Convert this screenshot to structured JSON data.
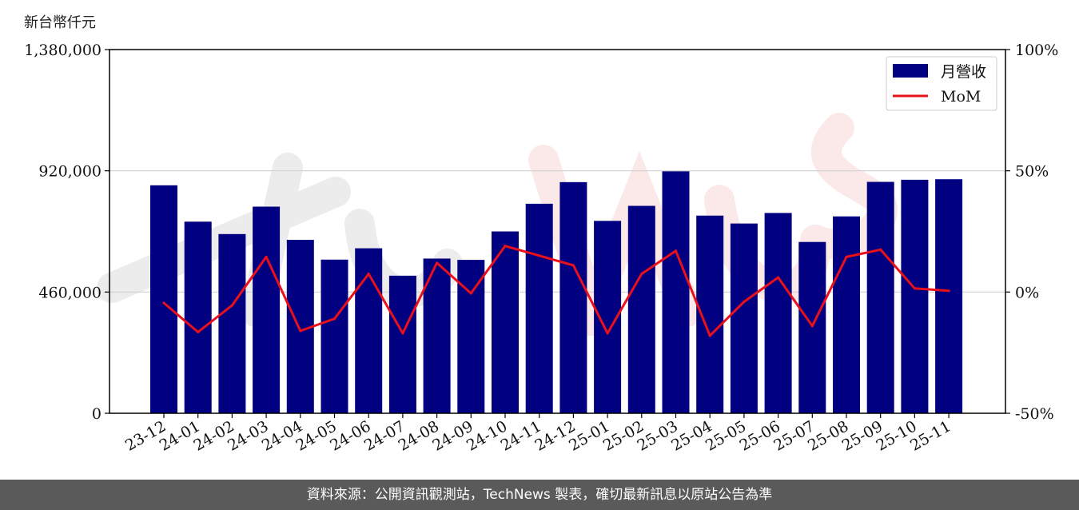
{
  "unit_label": "新台幣仟元",
  "footer": {
    "text": "資料來源：公開資訊觀測站，TechNews 製表，確切最新訊息以原站公告為準"
  },
  "colors": {
    "bar": "#000080",
    "line": "#e8101a",
    "grid": "#d0d0d0",
    "footer_bg": "#5a5a5a"
  },
  "chart_data": {
    "type": "bar",
    "categories": [
      "23-12",
      "24-01",
      "24-02",
      "24-03",
      "24-04",
      "24-05",
      "24-06",
      "24-07",
      "24-08",
      "24-09",
      "24-10",
      "24-11",
      "24-12",
      "25-01",
      "25-02",
      "25-03",
      "25-04",
      "25-05",
      "25-06",
      "25-07",
      "25-08",
      "25-09",
      "25-10",
      "25-11"
    ],
    "series": [
      {
        "name": "月營收",
        "axis": "left",
        "type": "bar",
        "values": [
          865000,
          727000,
          680000,
          784000,
          658000,
          583000,
          626000,
          522000,
          587000,
          582000,
          690000,
          795000,
          877000,
          730000,
          787000,
          918000,
          750000,
          720000,
          760000,
          650000,
          747000,
          878000,
          886000,
          888000
        ]
      },
      {
        "name": "MoM",
        "axis": "right",
        "type": "line",
        "values": [
          -4.5,
          -16.5,
          -5.5,
          14.5,
          -16,
          -11,
          7.5,
          -17,
          12,
          -0.5,
          19,
          15,
          11,
          -17,
          7.5,
          17,
          -18,
          -4,
          6,
          -14,
          14.5,
          17.5,
          1.5,
          0.5
        ]
      }
    ],
    "left_axis": {
      "ylim": [
        0,
        1380000
      ],
      "ticks": [
        "0",
        "460,000",
        "920,000",
        "1,380,000"
      ],
      "tick_values": [
        0,
        460000,
        920000,
        1380000
      ]
    },
    "right_axis": {
      "ylim": [
        -50,
        100
      ],
      "ticks": [
        "-50%",
        "0%",
        "50%",
        "100%"
      ],
      "tick_values": [
        -50,
        0,
        50,
        100
      ]
    },
    "grid": "horizontal",
    "legend_position": "top-right",
    "watermark": "TechNews"
  }
}
